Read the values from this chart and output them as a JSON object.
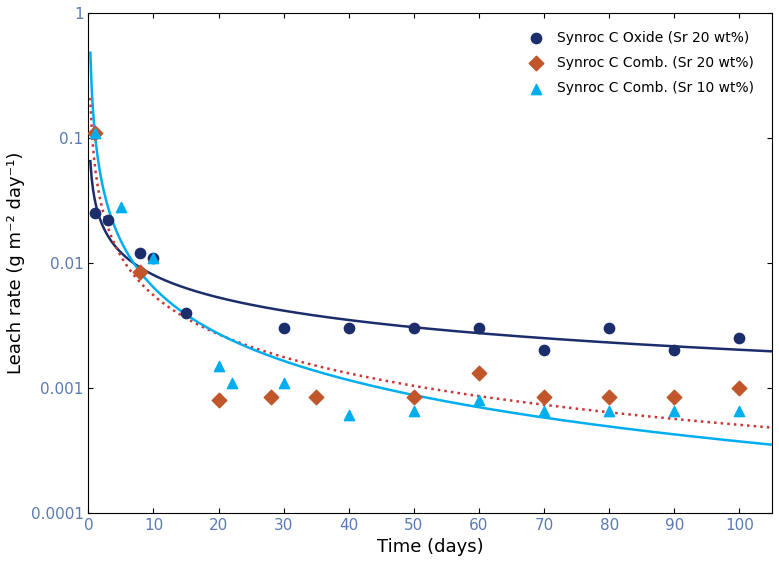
{
  "title": "",
  "xlabel": "Time (days)",
  "ylabel": "Leach rate (g m⁻² day⁻¹)",
  "xlim": [
    0,
    105
  ],
  "ylim_log": [
    0.0001,
    1
  ],
  "xticks": [
    0,
    10,
    20,
    30,
    40,
    50,
    60,
    70,
    80,
    90,
    100
  ],
  "ytick_labels": [
    "0.0001",
    "0.001",
    "0.01",
    "0.1",
    "1"
  ],
  "ytick_values": [
    0.0001,
    0.001,
    0.01,
    0.1,
    1
  ],
  "series1_label": "Synroc C Oxide (Sr 20 wt%)",
  "series1_color": "#1c2d6b",
  "series1_x": [
    1,
    3,
    8,
    10,
    15,
    30,
    40,
    50,
    60,
    70,
    80,
    90,
    100
  ],
  "series1_y": [
    0.025,
    0.022,
    0.012,
    0.011,
    0.004,
    0.003,
    0.003,
    0.003,
    0.003,
    0.002,
    0.003,
    0.002,
    0.0025
  ],
  "series2_label": "Synroc C Comb. (Sr 20 wt%)",
  "series2_color": "#c0562a",
  "series2_x": [
    1,
    8,
    20,
    28,
    35,
    50,
    60,
    70,
    80,
    90,
    100
  ],
  "series2_y": [
    0.11,
    0.0085,
    0.0008,
    0.00085,
    0.00085,
    0.00085,
    0.0013,
    0.00085,
    0.00085,
    0.00085,
    0.001
  ],
  "series3_label": "Synroc C Comb. (Sr 10 wt%)",
  "series3_color": "#00aeef",
  "series3_x": [
    1,
    5,
    10,
    20,
    22,
    30,
    40,
    50,
    60,
    70,
    80,
    90,
    100
  ],
  "series3_y": [
    0.11,
    0.028,
    0.011,
    0.0015,
    0.0011,
    0.0011,
    0.0006,
    0.00065,
    0.0008,
    0.00065,
    0.00065,
    0.00065,
    0.00065
  ],
  "curve1_color": "#1c2d6b",
  "curve2_color": "#cc3333",
  "curve3_color": "#00aeef",
  "curve1_a": 0.038,
  "curve1_b": -0.42,
  "curve2_a": 0.05,
  "curve2_b": -0.65,
  "curve3_a": 0.11,
  "curve3_b": -0.75,
  "legend_fontsize": 10,
  "axis_fontsize": 13,
  "tick_fontsize": 11
}
